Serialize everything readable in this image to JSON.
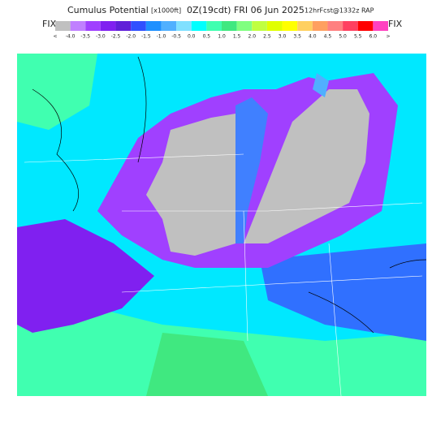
{
  "header": {
    "title": "Cumulus Potential",
    "units": "[x1000ft]",
    "valid": "0Z(19cdt) FRI 06 Jun 2025",
    "run": "12hrFcst@1332z RAP",
    "left_tag": "FIX",
    "right_tag": "FIX"
  },
  "legend": {
    "labels": [
      "<",
      "-4.0",
      "-3.5",
      "-3.0",
      "-2.5",
      "-2.0",
      "-1.5",
      "-1.0",
      "-0.5",
      "0.0",
      "0.5",
      "1.0",
      "1.5",
      "2.0",
      "2.5",
      "3.0",
      "3.5",
      "4.0",
      "4.5",
      "5.0",
      "5.5",
      "6.0",
      ">"
    ],
    "colors": [
      "#c0c0c0",
      "#c080ff",
      "#a040ff",
      "#8020f0",
      "#6020d8",
      "#3050ff",
      "#1e90ff",
      "#50b0ff",
      "#80e0ff",
      "#00ffff",
      "#40ffb0",
      "#40e880",
      "#80ff80",
      "#c0ff40",
      "#e0ff00",
      "#ffff00",
      "#ffd060",
      "#ffa060",
      "#ff8080",
      "#ff4060",
      "#ff0000",
      "#ff40c0"
    ]
  }
}
